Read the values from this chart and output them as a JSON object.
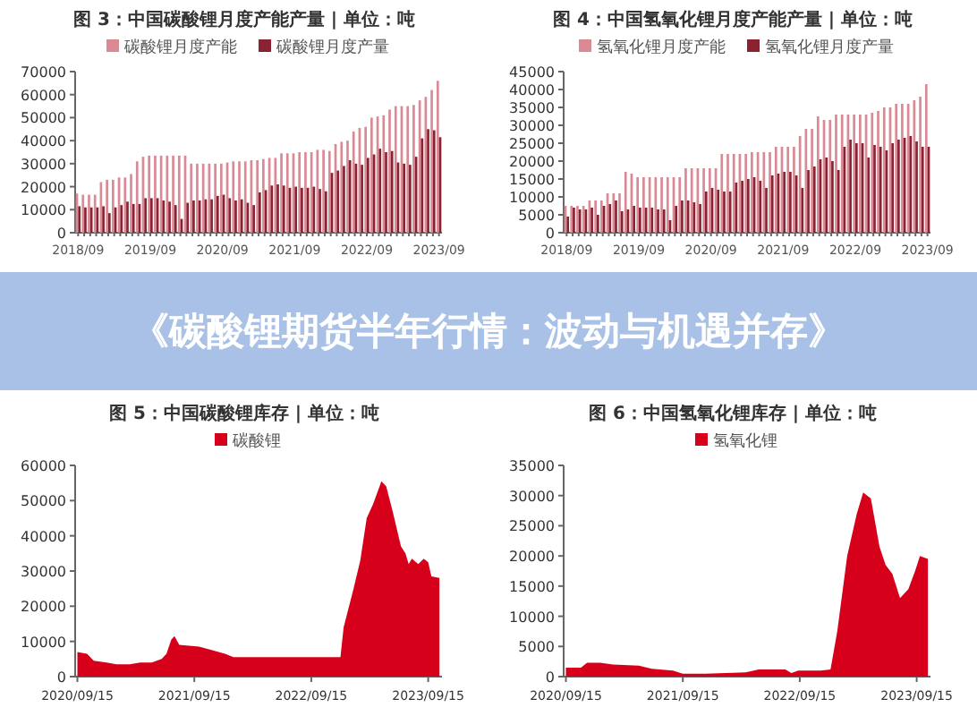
{
  "chart_data": [
    {
      "type": "bar",
      "title": "图 3：中国碳酸锂月度产能产量 | 单位：吨",
      "legend": "top",
      "ylim": [
        0,
        70000
      ],
      "yticks": [
        0,
        10000,
        20000,
        30000,
        40000,
        50000,
        60000,
        70000
      ],
      "categories": [
        "2018/09",
        null,
        null,
        null,
        null,
        null,
        null,
        null,
        null,
        null,
        null,
        null,
        "2019/09",
        null,
        null,
        null,
        null,
        null,
        null,
        null,
        null,
        null,
        null,
        null,
        "2020/09",
        null,
        null,
        null,
        null,
        null,
        null,
        null,
        null,
        null,
        null,
        null,
        "2021/09",
        null,
        null,
        null,
        null,
        null,
        null,
        null,
        null,
        null,
        null,
        null,
        "2022/09",
        null,
        null,
        null,
        null,
        null,
        null,
        null,
        null,
        null,
        null,
        null,
        "2023/09"
      ],
      "series": [
        {
          "name": "碳酸锂月度产能",
          "color": "#d98a94",
          "values": [
            17000,
            16500,
            16500,
            16500,
            22000,
            23000,
            23000,
            24000,
            24000,
            25500,
            31000,
            33000,
            33500,
            33500,
            33500,
            33500,
            33500,
            33500,
            33500,
            30000,
            30000,
            30000,
            30000,
            30000,
            30000,
            30500,
            31000,
            31000,
            31000,
            31500,
            31500,
            32000,
            32500,
            32500,
            34500,
            34500,
            34500,
            35000,
            35000,
            35000,
            36000,
            36000,
            35500,
            38500,
            39500,
            40000,
            44000,
            45500,
            46000,
            50000,
            50500,
            51000,
            53500,
            55000,
            55000,
            55000,
            55500,
            57500,
            59000,
            62000,
            66000
          ]
        },
        {
          "name": "碳酸锂月度产量",
          "color": "#8b2232",
          "values": [
            11500,
            11000,
            11000,
            11000,
            11500,
            8500,
            11000,
            12000,
            13500,
            12500,
            12500,
            15000,
            15000,
            15000,
            14000,
            13500,
            12000,
            6000,
            13000,
            14000,
            14000,
            14500,
            14500,
            16000,
            16500,
            15000,
            14000,
            14500,
            13000,
            12000,
            17500,
            18500,
            20500,
            21000,
            20500,
            19500,
            20000,
            19500,
            19500,
            20000,
            19000,
            18000,
            26000,
            27000,
            29000,
            31500,
            30000,
            29500,
            32500,
            34000,
            36500,
            35000,
            35500,
            30500,
            30000,
            29500,
            33000,
            41000,
            45000,
            44500,
            41500
          ]
        }
      ]
    },
    {
      "type": "bar",
      "title": "图 4：中国氢氧化锂月度产能产量 | 单位：吨",
      "legend": "top",
      "ylim": [
        0,
        45000
      ],
      "yticks": [
        0,
        5000,
        10000,
        15000,
        20000,
        25000,
        30000,
        35000,
        40000,
        45000
      ],
      "categories": [
        "2018/09",
        null,
        null,
        null,
        null,
        null,
        null,
        null,
        null,
        null,
        null,
        null,
        "2019/09",
        null,
        null,
        null,
        null,
        null,
        null,
        null,
        null,
        null,
        null,
        null,
        "2020/09",
        null,
        null,
        null,
        null,
        null,
        null,
        null,
        null,
        null,
        null,
        null,
        "2021/09",
        null,
        null,
        null,
        null,
        null,
        null,
        null,
        null,
        null,
        null,
        null,
        "2022/09",
        null,
        null,
        null,
        null,
        null,
        null,
        null,
        null,
        null,
        null,
        null,
        "2023/09"
      ],
      "series": [
        {
          "name": "氢氧化锂月度产能",
          "color": "#d98a94",
          "values": [
            7500,
            7500,
            7500,
            7500,
            9000,
            9000,
            9000,
            11000,
            11000,
            11000,
            17000,
            16500,
            15500,
            15500,
            15500,
            15500,
            15500,
            15500,
            15500,
            15500,
            18000,
            18000,
            18000,
            18000,
            18000,
            18000,
            22000,
            22000,
            22000,
            22000,
            22000,
            22500,
            22500,
            22500,
            22500,
            24000,
            24000,
            24000,
            24000,
            27000,
            29000,
            29000,
            32500,
            31500,
            31500,
            33000,
            33000,
            33000,
            33000,
            33000,
            33000,
            33500,
            34000,
            35000,
            35000,
            36000,
            36000,
            36000,
            37000,
            38000,
            41500
          ]
        },
        {
          "name": "氢氧化锂月度产量",
          "color": "#8b2232",
          "values": [
            4500,
            7000,
            6500,
            6500,
            7000,
            5000,
            7500,
            8000,
            9000,
            6000,
            6500,
            7500,
            7000,
            7000,
            7000,
            6500,
            6500,
            3500,
            7500,
            9000,
            9000,
            8500,
            8000,
            11500,
            12500,
            12000,
            11500,
            11500,
            14000,
            14500,
            15000,
            15500,
            14500,
            12500,
            16000,
            16500,
            17000,
            17000,
            16000,
            12500,
            17500,
            18500,
            20500,
            21000,
            20000,
            17500,
            24000,
            26000,
            25000,
            25000,
            21000,
            24500,
            24000,
            23000,
            25000,
            26000,
            26500,
            27000,
            25500,
            24000,
            24000
          ]
        }
      ]
    },
    {
      "type": "other",
      "title": "《碳酸锂期货半年行情：波动与机遇并存》"
    },
    {
      "type": "area",
      "title": "图 5：中国碳酸锂库存 | 单位：吨",
      "legend": "top",
      "ylim": [
        0,
        60000
      ],
      "yticks": [
        0,
        10000,
        20000,
        30000,
        40000,
        50000,
        60000
      ],
      "xlim": [
        "2020-09-08",
        "2023-10-28"
      ],
      "xticks": [
        {
          "value": "2020-09-15",
          "label": "2020/09/15"
        },
        {
          "value": "2021-09-15",
          "label": "2021/09/15"
        },
        {
          "value": "2022-09-15",
          "label": "2022/09/15"
        },
        {
          "value": "2023-09-15",
          "label": "2023/09/15"
        }
      ],
      "x": [
        "2020-09-15",
        "2020-10-15",
        "2020-11-05",
        "2020-12-15",
        "2021-01-15",
        "2021-02-25",
        "2021-03-30",
        "2021-05-05",
        "2021-06-05",
        "2021-06-20",
        "2021-07-05",
        "2021-07-15",
        "2021-07-30",
        "2021-09-30",
        "2021-11-10",
        "2021-12-20",
        "2022-01-15",
        "2022-03-15",
        "2022-09-15",
        "2022-12-15",
        "2022-12-25",
        "2023-01-25",
        "2023-02-15",
        "2023-03-07",
        "2023-03-27",
        "2023-04-22",
        "2023-05-07",
        "2023-05-27",
        "2023-06-22",
        "2023-07-06",
        "2023-07-16",
        "2023-07-26",
        "2023-08-15",
        "2023-09-01",
        "2023-09-15",
        "2023-09-25",
        "2023-10-20"
      ],
      "series": [
        {
          "name": "碳酸锂",
          "color": "#d7001a",
          "values": [
            7000,
            6500,
            4500,
            4000,
            3500,
            3500,
            4000,
            4000,
            5000,
            6500,
            10500,
            11500,
            9000,
            8500,
            7500,
            6500,
            5500,
            5500,
            5500,
            5500,
            14000,
            25000,
            33000,
            45000,
            49000,
            55500,
            54000,
            47000,
            37000,
            35000,
            32000,
            33500,
            32000,
            33500,
            32500,
            28500,
            28000
          ]
        }
      ]
    },
    {
      "type": "area",
      "title": "图 6：中国氢氧化锂库存 | 单位：吨",
      "legend": "top",
      "ylim": [
        0,
        35000
      ],
      "yticks": [
        0,
        5000,
        10000,
        15000,
        20000,
        25000,
        30000,
        35000
      ],
      "xlim": [
        "2020-09-08",
        "2023-10-28"
      ],
      "xticks": [
        {
          "value": "2020-09-15",
          "label": "2020/09/15"
        },
        {
          "value": "2021-09-15",
          "label": "2021/09/15"
        },
        {
          "value": "2022-09-15",
          "label": "2022/09/15"
        },
        {
          "value": "2023-09-15",
          "label": "2023/09/15"
        }
      ],
      "x": [
        "2020-09-15",
        "2020-11-01",
        "2020-11-20",
        "2020-12-31",
        "2021-02-10",
        "2021-05-01",
        "2021-06-10",
        "2021-08-15",
        "2021-09-15",
        "2021-11-25",
        "2022-03-30",
        "2022-05-10",
        "2022-08-01",
        "2022-08-20",
        "2022-09-10",
        "2022-11-20",
        "2022-12-20",
        "2023-01-10",
        "2023-02-10",
        "2023-03-12",
        "2023-04-01",
        "2023-04-25",
        "2023-05-22",
        "2023-06-10",
        "2023-07-01",
        "2023-07-25",
        "2023-08-20",
        "2023-09-10",
        "2023-09-25",
        "2023-10-20"
      ],
      "series": [
        {
          "name": "氢氧化锂",
          "color": "#d7001a",
          "values": [
            1500,
            1500,
            2300,
            2300,
            2000,
            1800,
            1300,
            1000,
            500,
            500,
            700,
            1200,
            1200,
            600,
            1000,
            1000,
            1200,
            7500,
            20000,
            27000,
            30500,
            29500,
            21500,
            18500,
            17000,
            13000,
            14500,
            17500,
            20000,
            19500
          ]
        }
      ]
    }
  ]
}
